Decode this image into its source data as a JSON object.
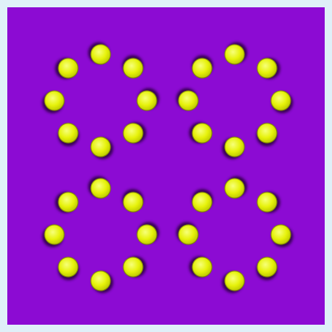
{
  "image": {
    "kind": "optical-illusion-pattern",
    "background_color": "#8c0bd3",
    "frame_color": "#dff0f8",
    "ball_color": "#e6f20a",
    "ball_highlight_color": "#f7ff7a",
    "ball_shadow_color": "#2a0040",
    "group_count": 4,
    "balls_per_group": 8,
    "ball_count": 32
  }
}
